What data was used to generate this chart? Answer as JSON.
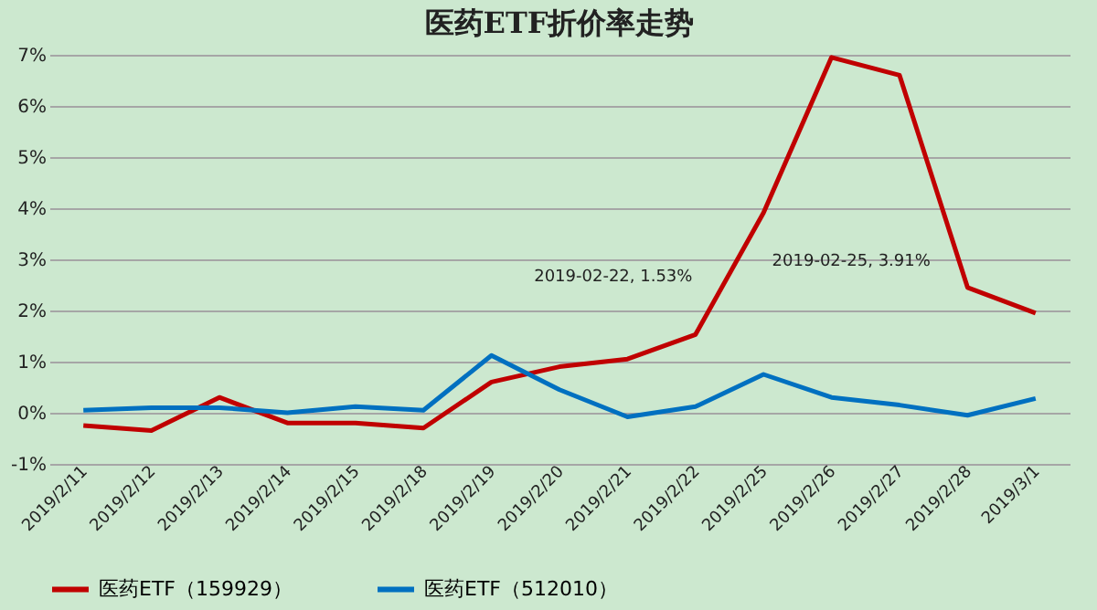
{
  "chart_data": {
    "type": "line",
    "title": "医药ETF折价率走势",
    "categories": [
      "2019/2/11",
      "2019/2/12",
      "2019/2/13",
      "2019/2/14",
      "2019/2/15",
      "2019/2/18",
      "2019/2/19",
      "2019/2/20",
      "2019/2/21",
      "2019/2/22",
      "2019/2/25",
      "2019/2/26",
      "2019/2/27",
      "2019/2/28",
      "2019/3/1"
    ],
    "series": [
      {
        "name": "医药ETF（159929）",
        "color": "#c00000",
        "values": [
          -0.25,
          -0.35,
          0.3,
          -0.2,
          -0.2,
          -0.3,
          0.6,
          0.9,
          1.05,
          1.53,
          3.91,
          6.95,
          6.6,
          2.45,
          1.95
        ]
      },
      {
        "name": "医药ETF（512010）",
        "color": "#0070c0",
        "values": [
          0.05,
          0.1,
          0.1,
          0.0,
          0.12,
          0.05,
          1.12,
          0.45,
          -0.08,
          0.12,
          0.75,
          0.3,
          0.15,
          -0.05,
          0.28
        ]
      }
    ],
    "ylim": [
      -1,
      7
    ],
    "yticks": [
      {
        "value": -1,
        "label": "-1%"
      },
      {
        "value": 0,
        "label": "0%"
      },
      {
        "value": 1,
        "label": "1%"
      },
      {
        "value": 2,
        "label": "2%"
      },
      {
        "value": 3,
        "label": "3%"
      },
      {
        "value": 4,
        "label": "4%"
      },
      {
        "value": 5,
        "label": "5%"
      },
      {
        "value": 6,
        "label": "6%"
      },
      {
        "value": 7,
        "label": "7%"
      }
    ],
    "annotations": [
      {
        "text": "2019-02-22, 1.53%",
        "x": "2019/2/22",
        "y": 1.53
      },
      {
        "text": "2019-02-25, 3.91%",
        "x": "2019/2/25",
        "y": 3.91
      }
    ],
    "grid": "y",
    "legend": "bottom",
    "line_style": "solid",
    "marker": "none"
  }
}
